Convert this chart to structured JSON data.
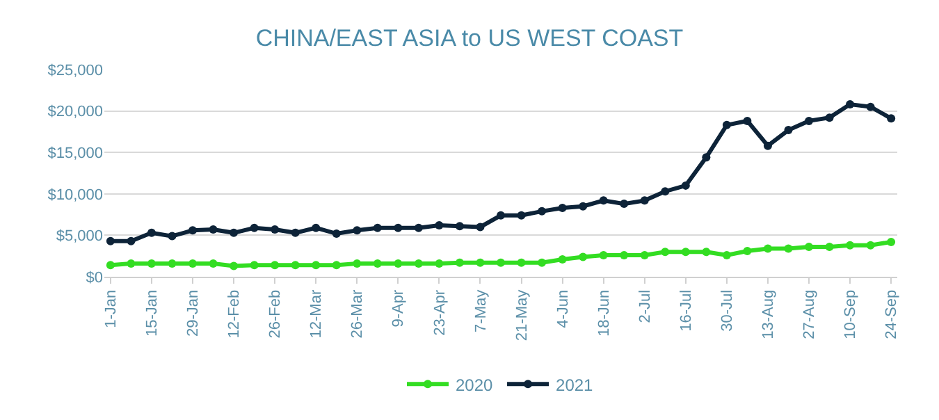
{
  "chart_data": {
    "type": "line",
    "title": "CHINA/EAST ASIA to US WEST COAST",
    "categories": [
      "1-Jan",
      null,
      "15-Jan",
      null,
      "29-Jan",
      null,
      "12-Feb",
      null,
      "26-Feb",
      null,
      "12-Mar",
      null,
      "26-Mar",
      null,
      "9-Apr",
      null,
      "23-Apr",
      null,
      "7-May",
      null,
      "21-May",
      null,
      "4-Jun",
      null,
      "18-Jun",
      null,
      "2-Jul",
      null,
      "16-Jul",
      null,
      "30-Jul",
      null,
      "13-Aug",
      null,
      "27-Aug",
      null,
      "10-Sep",
      null,
      "24-Sep"
    ],
    "series": [
      {
        "name": "2020",
        "color": "#33dd22",
        "values": [
          1400,
          1600,
          1600,
          1600,
          1600,
          1600,
          1300,
          1400,
          1400,
          1400,
          1400,
          1400,
          1600,
          1600,
          1600,
          1600,
          1600,
          1700,
          1700,
          1700,
          1700,
          1700,
          2100,
          2400,
          2600,
          2600,
          2600,
          3000,
          3000,
          3000,
          2600,
          3100,
          3400,
          3400,
          3600,
          3600,
          3800,
          3800,
          4200
        ]
      },
      {
        "name": "2021",
        "color": "#0d2338",
        "values": [
          4300,
          4300,
          5300,
          4900,
          5600,
          5700,
          5300,
          5900,
          5700,
          5300,
          5900,
          5200,
          5600,
          5900,
          5900,
          5900,
          6200,
          6100,
          6000,
          7400,
          7400,
          7900,
          8300,
          8500,
          9200,
          8800,
          9200,
          10300,
          11000,
          14400,
          18300,
          18800,
          15800,
          17700,
          18800,
          19200,
          20800,
          20500,
          19100
        ]
      }
    ],
    "ylim": [
      0,
      25000
    ],
    "yticks": [
      {
        "value": 0,
        "label": "$0"
      },
      {
        "value": 5000,
        "label": "$5,000"
      },
      {
        "value": 10000,
        "label": "$10,000"
      },
      {
        "value": 15000,
        "label": "$15,000"
      },
      {
        "value": 20000,
        "label": "$20,000"
      },
      {
        "value": 25000,
        "label": "$25,000"
      }
    ],
    "grid": "y",
    "legend": "bottom",
    "marker": "circle",
    "line_style": "solid"
  }
}
